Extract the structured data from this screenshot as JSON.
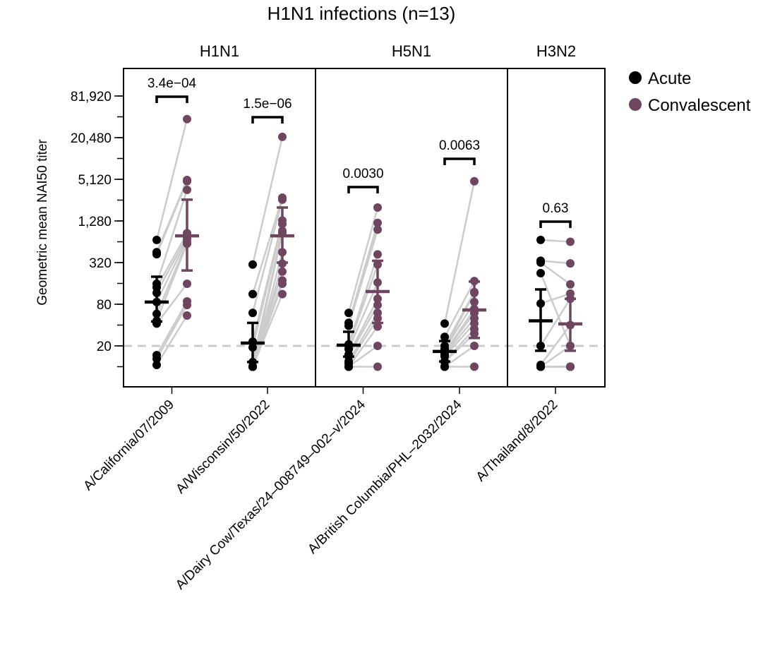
{
  "chart_data": {
    "type": "scatter",
    "title": "H1N1 infections (n=13)",
    "ylabel": "Geometric mean NAI50 titer",
    "xlabel": "",
    "y_scale": "log2",
    "ylim": [
      8,
      100000
    ],
    "y_ticks": [
      20,
      80,
      320,
      1280,
      5120,
      20480,
      81920
    ],
    "y_tick_labels": [
      "20",
      "80",
      "320",
      "1,280",
      "5,120",
      "20,480",
      "81,920"
    ],
    "reference_line": 20,
    "legend": {
      "position": "right",
      "entries": [
        {
          "label": "Acute",
          "color": "#000000"
        },
        {
          "label": "Convalescent",
          "color": "#6e4660"
        }
      ]
    },
    "panels": [
      {
        "label": "H1N1",
        "strains": [
          {
            "name": "A/California/07/2009",
            "p_value": "3.4e−04",
            "acute": [
              680,
              453,
              423,
              158,
              140,
              117,
              86,
              58,
              46,
              42,
              14.7,
              13,
              10.6
            ],
            "convalescent": [
              38000,
              5000,
              4800,
              3600,
              850,
              760,
              700,
              630,
              600,
              158,
              88,
              78,
              55
            ],
            "acute_mean": 86,
            "acute_ci": [
              45,
              200
            ],
            "conv_mean": 780,
            "conv_ci": [
              246,
              2600
            ]
          },
          {
            "name": "A/Wisconsin/50/2022",
            "p_value": "1.5e−06",
            "acute": [
              300,
              112,
              60,
              23,
              19,
              11.7,
              10,
              10,
              10,
              10,
              10,
              10,
              10
            ],
            "convalescent": [
              21000,
              2780,
              2600,
              1300,
              1160,
              920,
              860,
              453,
              310,
              237,
              177,
              158,
              112
            ],
            "acute_mean": 22,
            "acute_ci": [
              11.7,
              43
            ],
            "conv_mean": 780,
            "conv_ci": [
              320,
              2000
            ]
          }
        ]
      },
      {
        "label": "H5N1",
        "strains": [
          {
            "name": "A/Dairy Cow/Texas/24–008749–002–v/2024",
            "p_value": "0.0030",
            "acute": [
              60,
              43,
              39,
              21,
              20,
              18,
              15,
              14,
              12,
              11.1,
              10,
              10,
              10
            ],
            "convalescent": [
              2000,
              1200,
              960,
              420,
              300,
              165,
              96,
              78,
              60,
              50,
              38,
              20,
              10
            ],
            "acute_mean": 20.5,
            "acute_ci": [
              14,
              32
            ],
            "conv_mean": 122,
            "conv_ci": [
              43,
              340
            ]
          },
          {
            "name": "A/British Columbia/PHL–2032/2024",
            "p_value": "0.0063",
            "acute": [
              42,
              27,
              20,
              18,
              17.8,
              16,
              16,
              15,
              14,
              12,
              11.7,
              10,
              10
            ],
            "convalescent": [
              4800,
              173,
              120,
              117,
              86,
              68,
              60,
              50,
              42,
              35,
              30,
              20,
              10
            ],
            "acute_mean": 16.6,
            "acute_ci": [
              11.9,
              23.5
            ],
            "conv_mean": 66,
            "conv_ci": [
              26,
              170
            ]
          }
        ]
      },
      {
        "label": "H3N2",
        "strains": [
          {
            "name": "A/Thailand/8/2022",
            "p_value": "0.63",
            "acute": [
              680,
              340,
              320,
              225,
              82,
              20,
              10.6,
              10,
              10,
              10,
              10,
              10,
              10
            ],
            "convalescent": [
              640,
              312,
              155,
              20,
              114,
              96,
              40,
              10,
              20,
              10,
              10,
              10,
              10
            ],
            "acute_mean": 46,
            "acute_ci": [
              17,
              131
            ],
            "conv_mean": 41.5,
            "conv_ci": [
              17,
              96
            ]
          }
        ]
      }
    ]
  }
}
